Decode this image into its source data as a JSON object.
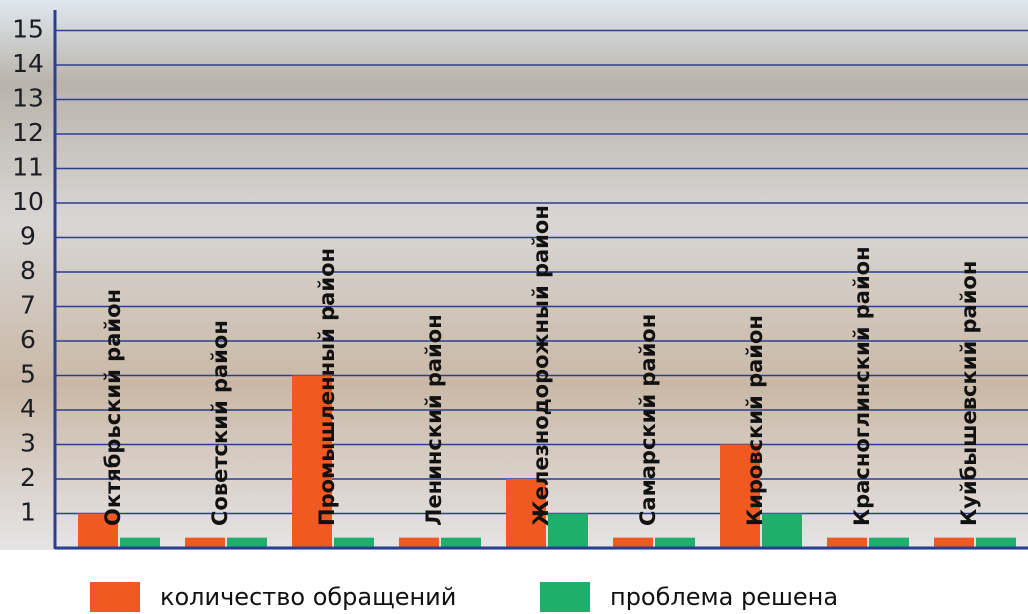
{
  "chart_data": {
    "type": "bar",
    "categories": [
      "Октябрьский район",
      "Советский район",
      "Промышленный район",
      "Ленинский район",
      "Железнодорожный район",
      "Самарский район",
      "Кировский район",
      "Красноглинский район",
      "Куйбышевский район"
    ],
    "series": [
      {
        "name": "количество обращений",
        "color": "#f05a22",
        "values": [
          1,
          0.3,
          5,
          0.3,
          2,
          0.3,
          3,
          0.3,
          0.3
        ]
      },
      {
        "name": "проблема решена",
        "color": "#1fae6b",
        "values": [
          0.3,
          0.3,
          0.3,
          0.3,
          1,
          0.3,
          1,
          0.3,
          0.3
        ]
      }
    ],
    "ylim": [
      0,
      15
    ],
    "yticks": [
      1,
      2,
      3,
      4,
      5,
      6,
      7,
      8,
      9,
      10,
      11,
      12,
      13,
      14,
      15
    ],
    "grid": true,
    "grid_color": "#2b3f91"
  }
}
